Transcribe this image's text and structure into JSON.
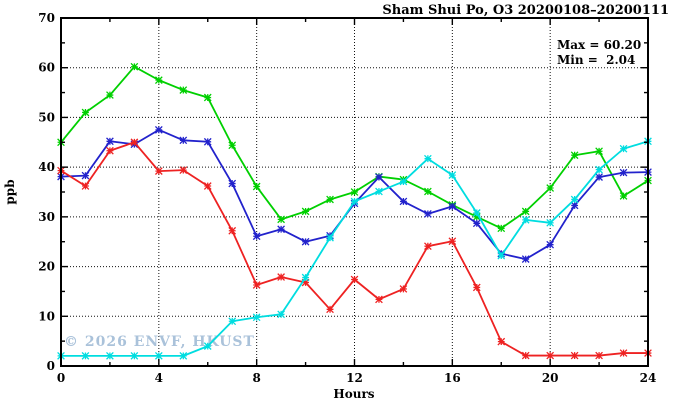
{
  "title": "Sham Shui Po, O3 20200108–20200111",
  "legend": {
    "max_label": "Max = 60.20",
    "min_label": "Min =  2.04"
  },
  "watermark": "© 2026 ENVF, HKUST",
  "chart_data": {
    "type": "line",
    "title": "Sham Shui Po, O3 20200108–20200111",
    "xlabel": "Hours",
    "ylabel": "ppb",
    "xlim": [
      0,
      24
    ],
    "ylim": [
      0,
      70
    ],
    "xticks": [
      0,
      4,
      8,
      12,
      16,
      20,
      24
    ],
    "yticks": [
      0,
      10,
      20,
      30,
      40,
      50,
      60,
      70
    ],
    "x_minor_step": 2,
    "y_minor_step": 5,
    "grid": true,
    "legend_position": "top-right",
    "stats": {
      "max": 60.2,
      "min": 2.04
    },
    "x": [
      0,
      1,
      2,
      3,
      4,
      5,
      6,
      7,
      8,
      9,
      10,
      11,
      12,
      13,
      14,
      15,
      16,
      17,
      18,
      19,
      20,
      21,
      22,
      23,
      24
    ],
    "series": [
      {
        "name": "green",
        "color": "#00d000",
        "marker": "star",
        "values": [
          45.0,
          51.0,
          54.5,
          60.2,
          57.5,
          55.5,
          54.0,
          44.4,
          36.1,
          29.5,
          31.1,
          33.5,
          35.0,
          38.1,
          37.5,
          35.1,
          32.4,
          30.0,
          27.7,
          31.1,
          35.8,
          42.4,
          43.2,
          34.2,
          37.3
        ]
      },
      {
        "name": "blue",
        "color": "#2222cc",
        "marker": "star",
        "values": [
          38.1,
          38.3,
          45.2,
          44.6,
          47.5,
          45.4,
          45.1,
          36.7,
          26.1,
          27.5,
          25.0,
          26.2,
          32.7,
          38.0,
          33.1,
          30.6,
          32.1,
          28.7,
          22.6,
          21.5,
          24.4,
          32.3,
          38.0,
          38.9,
          39.0
        ]
      },
      {
        "name": "red",
        "color": "#ee2222",
        "marker": "star",
        "values": [
          39.3,
          36.2,
          43.3,
          45.0,
          39.2,
          39.4,
          36.2,
          27.2,
          16.3,
          17.9,
          16.8,
          11.4,
          17.4,
          13.4,
          15.5,
          24.1,
          25.1,
          15.8,
          4.9,
          2.1,
          2.1,
          2.1,
          2.1,
          2.6,
          2.6
        ]
      },
      {
        "name": "cyan",
        "color": "#00dde0",
        "marker": "star",
        "values": [
          2.04,
          2.04,
          2.04,
          2.04,
          2.04,
          2.04,
          4.0,
          9.0,
          9.8,
          10.4,
          17.8,
          25.8,
          33.1,
          35.1,
          37.1,
          41.7,
          38.4,
          30.8,
          22.2,
          29.4,
          28.8,
          33.5,
          39.5,
          43.7,
          45.2
        ]
      }
    ]
  }
}
